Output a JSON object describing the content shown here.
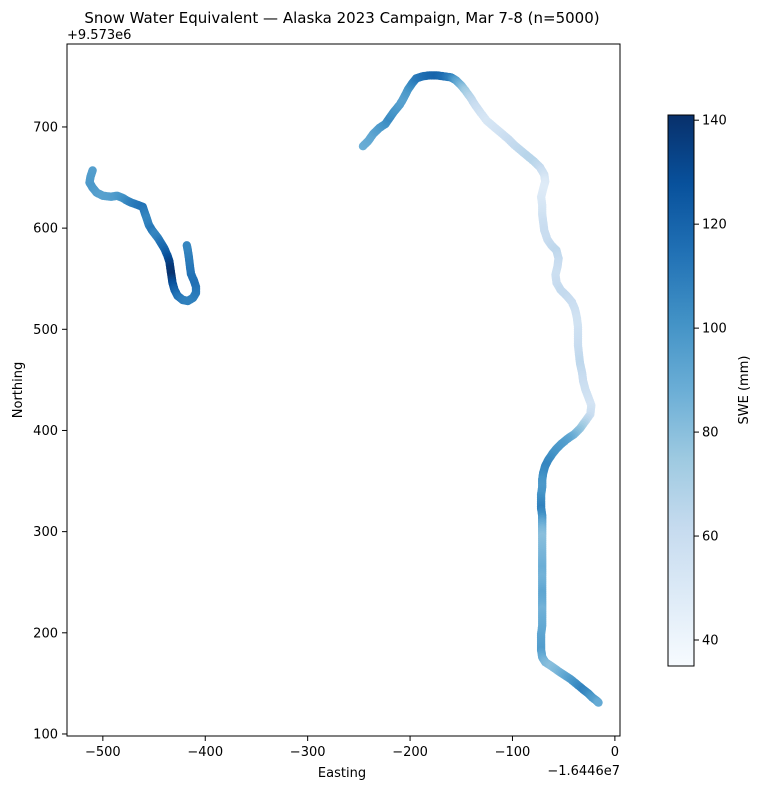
{
  "chart_data": {
    "type": "scatter",
    "title": "Snow Water Equivalent — Alaska 2023 Campaign, Mar 7-8 (n=5000)",
    "xlabel": "Easting",
    "ylabel": "Northing",
    "x_offset_text": "−1.6446e7",
    "y_offset_text": "+9.573e6",
    "xlim": [
      -535,
      5
    ],
    "ylim": [
      98,
      782
    ],
    "x_ticks": [
      -500,
      -400,
      -300,
      -200,
      -100,
      0
    ],
    "x_tick_labels": [
      "−500",
      "−400",
      "−300",
      "−200",
      "−100",
      "0"
    ],
    "y_ticks": [
      100,
      200,
      300,
      400,
      500,
      600,
      700
    ],
    "y_tick_labels": [
      "100",
      "200",
      "300",
      "400",
      "500",
      "600",
      "700"
    ],
    "grid": false,
    "colormap": "Blues",
    "colorbar": {
      "label": "SWE (mm)",
      "range": [
        35,
        141
      ],
      "ticks": [
        40,
        60,
        80,
        100,
        120,
        140
      ],
      "tick_labels": [
        "40",
        "60",
        "80",
        "100",
        "120",
        "140"
      ]
    },
    "series": [
      {
        "points": [
          [
            -510,
            657,
            95
          ],
          [
            -512,
            651,
            96
          ],
          [
            -513,
            645,
            97
          ],
          [
            -510,
            640,
            98
          ],
          [
            -506,
            635,
            96
          ],
          [
            -500,
            632,
            94
          ],
          [
            -492,
            631,
            95
          ],
          [
            -486,
            632,
            97
          ],
          [
            -481,
            630,
            100
          ],
          [
            -476,
            627,
            104
          ],
          [
            -472,
            625,
            108
          ],
          [
            -466,
            623,
            112
          ],
          [
            -461,
            621,
            114
          ],
          [
            -459,
            615,
            110
          ],
          [
            -457,
            609,
            106
          ],
          [
            -455,
            603,
            108
          ],
          [
            -452,
            598,
            112
          ],
          [
            -449,
            594,
            106
          ],
          [
            -446,
            590,
            108
          ],
          [
            -443,
            585,
            114
          ],
          [
            -440,
            580,
            118
          ],
          [
            -437,
            573,
            125
          ],
          [
            -435,
            567,
            132
          ],
          [
            -434,
            560,
            138
          ],
          [
            -433,
            553,
            140
          ],
          [
            -432,
            546,
            130
          ],
          [
            -430,
            539,
            122
          ],
          [
            -427,
            533,
            115
          ],
          [
            -422,
            529,
            110
          ],
          [
            -417,
            528,
            108
          ],
          [
            -412,
            531,
            108
          ],
          [
            -409,
            536,
            110
          ],
          [
            -409,
            542,
            112
          ],
          [
            -411,
            548,
            115
          ],
          [
            -414,
            555,
            114
          ],
          [
            -415,
            563,
            112
          ],
          [
            -416,
            571,
            110
          ],
          [
            -417,
            578,
            108
          ],
          [
            -418,
            583,
            106
          ]
        ]
      },
      {
        "points": [
          [
            -246,
            681,
            88
          ],
          [
            -241,
            686,
            90
          ],
          [
            -236,
            693,
            92
          ],
          [
            -230,
            699,
            96
          ],
          [
            -224,
            703,
            100
          ],
          [
            -220,
            709,
            104
          ],
          [
            -215,
            716,
            100
          ],
          [
            -210,
            722,
            96
          ],
          [
            -206,
            729,
            94
          ],
          [
            -202,
            737,
            98
          ],
          [
            -198,
            743,
            104
          ],
          [
            -194,
            748,
            110
          ],
          [
            -188,
            750,
            114
          ],
          [
            -181,
            751,
            118
          ],
          [
            -174,
            751,
            120
          ],
          [
            -167,
            750,
            116
          ],
          [
            -160,
            749,
            108
          ],
          [
            -155,
            746,
            95
          ],
          [
            -150,
            741,
            84
          ],
          [
            -146,
            736,
            74
          ],
          [
            -141,
            729,
            66
          ],
          [
            -136,
            721,
            60
          ],
          [
            -131,
            714,
            56
          ],
          [
            -125,
            706,
            52
          ],
          [
            -118,
            700,
            54
          ],
          [
            -111,
            694,
            56
          ],
          [
            -104,
            688,
            60
          ],
          [
            -98,
            682,
            62
          ],
          [
            -91,
            676,
            64
          ],
          [
            -85,
            671,
            66
          ],
          [
            -79,
            666,
            66
          ],
          [
            -73,
            660,
            62
          ],
          [
            -69,
            653,
            56
          ],
          [
            -68,
            646,
            50
          ],
          [
            -70,
            639,
            48
          ],
          [
            -72,
            631,
            50
          ],
          [
            -71,
            623,
            52
          ],
          [
            -71,
            614,
            55
          ],
          [
            -70,
            606,
            58
          ],
          [
            -69,
            598,
            60
          ],
          [
            -66,
            589,
            60
          ],
          [
            -62,
            583,
            62
          ],
          [
            -57,
            578,
            64
          ],
          [
            -55,
            570,
            62
          ],
          [
            -56,
            562,
            60
          ],
          [
            -58,
            554,
            58
          ],
          [
            -57,
            546,
            60
          ],
          [
            -53,
            539,
            62
          ],
          [
            -47,
            533,
            62
          ],
          [
            -42,
            527,
            60
          ],
          [
            -39,
            520,
            58
          ],
          [
            -37,
            511,
            56
          ],
          [
            -36,
            502,
            56
          ],
          [
            -36,
            493,
            58
          ],
          [
            -36,
            484,
            60
          ],
          [
            -35,
            475,
            62
          ],
          [
            -34,
            466,
            64
          ],
          [
            -32,
            457,
            62
          ],
          [
            -31,
            449,
            60
          ],
          [
            -29,
            441,
            58
          ],
          [
            -26,
            433,
            56
          ],
          [
            -23,
            425,
            54
          ],
          [
            -24,
            416,
            58
          ],
          [
            -29,
            409,
            66
          ],
          [
            -34,
            402,
            76
          ],
          [
            -40,
            396,
            84
          ],
          [
            -46,
            392,
            92
          ],
          [
            -52,
            387,
            96
          ],
          [
            -57,
            382,
            98
          ],
          [
            -61,
            377,
            100
          ],
          [
            -65,
            371,
            104
          ],
          [
            -68,
            365,
            106
          ],
          [
            -70,
            358,
            104
          ],
          [
            -71,
            351,
            100
          ],
          [
            -71,
            344,
            98
          ],
          [
            -72,
            337,
            100
          ],
          [
            -72,
            330,
            104
          ],
          [
            -72,
            323,
            108
          ],
          [
            -71,
            316,
            102
          ],
          [
            -71,
            309,
            92
          ],
          [
            -71,
            302,
            84
          ],
          [
            -71,
            295,
            80
          ],
          [
            -71,
            287,
            82
          ],
          [
            -71,
            279,
            84
          ],
          [
            -71,
            271,
            86
          ],
          [
            -71,
            263,
            88
          ],
          [
            -71,
            255,
            86
          ],
          [
            -71,
            247,
            88
          ],
          [
            -71,
            239,
            92
          ],
          [
            -71,
            231,
            90
          ],
          [
            -71,
            223,
            86
          ],
          [
            -71,
            215,
            88
          ],
          [
            -71,
            207,
            90
          ],
          [
            -72,
            199,
            92
          ],
          [
            -72,
            191,
            94
          ],
          [
            -72,
            183,
            96
          ],
          [
            -71,
            176,
            90
          ],
          [
            -68,
            171,
            84
          ],
          [
            -62,
            167,
            80
          ],
          [
            -55,
            162,
            84
          ],
          [
            -49,
            158,
            90
          ],
          [
            -43,
            154,
            96
          ],
          [
            -37,
            149,
            102
          ],
          [
            -31,
            144,
            108
          ],
          [
            -26,
            140,
            104
          ],
          [
            -22,
            136,
            98
          ],
          [
            -18,
            133,
            94
          ],
          [
            -16,
            131,
            90
          ]
        ]
      }
    ]
  }
}
